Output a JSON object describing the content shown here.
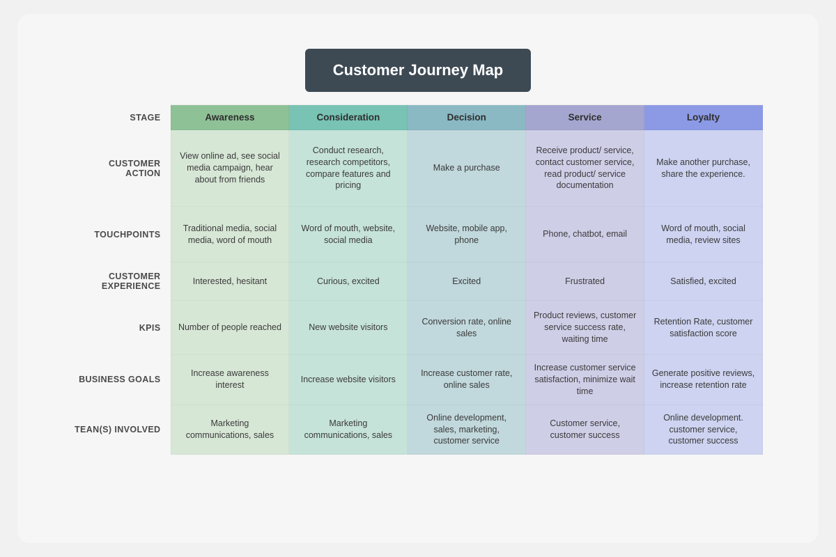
{
  "title": "Customer Journey Map",
  "title_bg": "#3d4a54",
  "title_color": "#ffffff",
  "page_bg": "#f6f6f6",
  "stage_row_label": "STAGE",
  "stages": [
    {
      "label": "Awareness",
      "head_bg": "#8fc196",
      "body_bg": "#d7e7d6"
    },
    {
      "label": "Consideration",
      "head_bg": "#78c3b4",
      "body_bg": "#c6e3d9"
    },
    {
      "label": "Decision",
      "head_bg": "#8ab9c4",
      "body_bg": "#c1d8dc"
    },
    {
      "label": "Service",
      "head_bg": "#a5a6cf",
      "body_bg": "#cfcee7"
    },
    {
      "label": "Loyalty",
      "head_bg": "#8c9ae6",
      "body_bg": "#cdd3f0"
    }
  ],
  "rows": [
    {
      "label": "CUSTOMER ACTION",
      "class": "r-action",
      "cells": [
        "View online ad, see social media campaign, hear about from friends",
        "Conduct research, research competitors, compare features and pricing",
        "Make a purchase",
        "Receive product/ service, contact customer service, read product/ service documentation",
        "Make another purchase, share the experience."
      ]
    },
    {
      "label": "TOUCHPOINTS",
      "class": "r-touch",
      "cells": [
        "Traditional media, social media, word of mouth",
        "Word of mouth, website, social media",
        "Website, mobile app, phone",
        "Phone, chatbot, email",
        "Word of mouth, social media, review sites"
      ]
    },
    {
      "label": "CUSTOMER EXPERIENCE",
      "class": "r-exp",
      "cells": [
        "Interested, hesitant",
        "Curious, excited",
        "Excited",
        "Frustrated",
        "Satisfied, excited"
      ]
    },
    {
      "label": "KPIS",
      "class": "r-kpi",
      "cells": [
        "Number of people reached",
        "New website visitors",
        "Conversion rate, online sales",
        "Product reviews, customer service success rate, waiting time",
        "Retention Rate, customer satisfaction score"
      ]
    },
    {
      "label": "BUSINESS GOALS",
      "class": "r-goal",
      "cells": [
        "Increase awareness interest",
        "Increase website visitors",
        "Increase customer rate, online sales",
        "Increase customer service satisfaction, minimize wait time",
        "Generate positive reviews, increase retention rate"
      ]
    },
    {
      "label": "TEAN(S) INVOLVED",
      "class": "r-team",
      "cells": [
        "Marketing communications, sales",
        "Marketing communications, sales",
        "Online development, sales, marketing, customer service",
        "Customer service, customer success",
        "Online development. customer service, customer success"
      ]
    }
  ]
}
